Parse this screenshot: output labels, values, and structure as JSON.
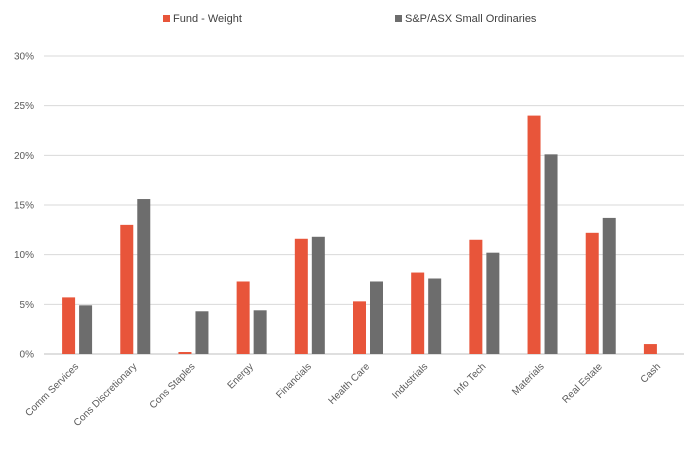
{
  "chart_data": {
    "type": "bar",
    "categories": [
      "Comm Services",
      "Cons Discretionary",
      "Cons Staples",
      "Energy",
      "Financials",
      "Health Care",
      "Industrials",
      "Info Tech",
      "Materials",
      "Real Estate",
      "Cash"
    ],
    "series": [
      {
        "name": "Fund - Weight",
        "color": "#e8553a",
        "values": [
          5.7,
          13.0,
          0.2,
          7.3,
          11.6,
          5.3,
          8.2,
          11.5,
          24.0,
          12.2,
          1.0
        ]
      },
      {
        "name": "S&P/ASX Small Ordinaries",
        "color": "#6d6d6d",
        "values": [
          4.9,
          15.6,
          4.3,
          4.4,
          11.8,
          7.3,
          7.6,
          10.2,
          20.1,
          13.7,
          0.0
        ]
      }
    ],
    "yticks": [
      "0%",
      "5%",
      "10%",
      "15%",
      "20%",
      "25%",
      "30%"
    ],
    "ylim": [
      0,
      30
    ],
    "legend_position": "top",
    "grid": true
  }
}
